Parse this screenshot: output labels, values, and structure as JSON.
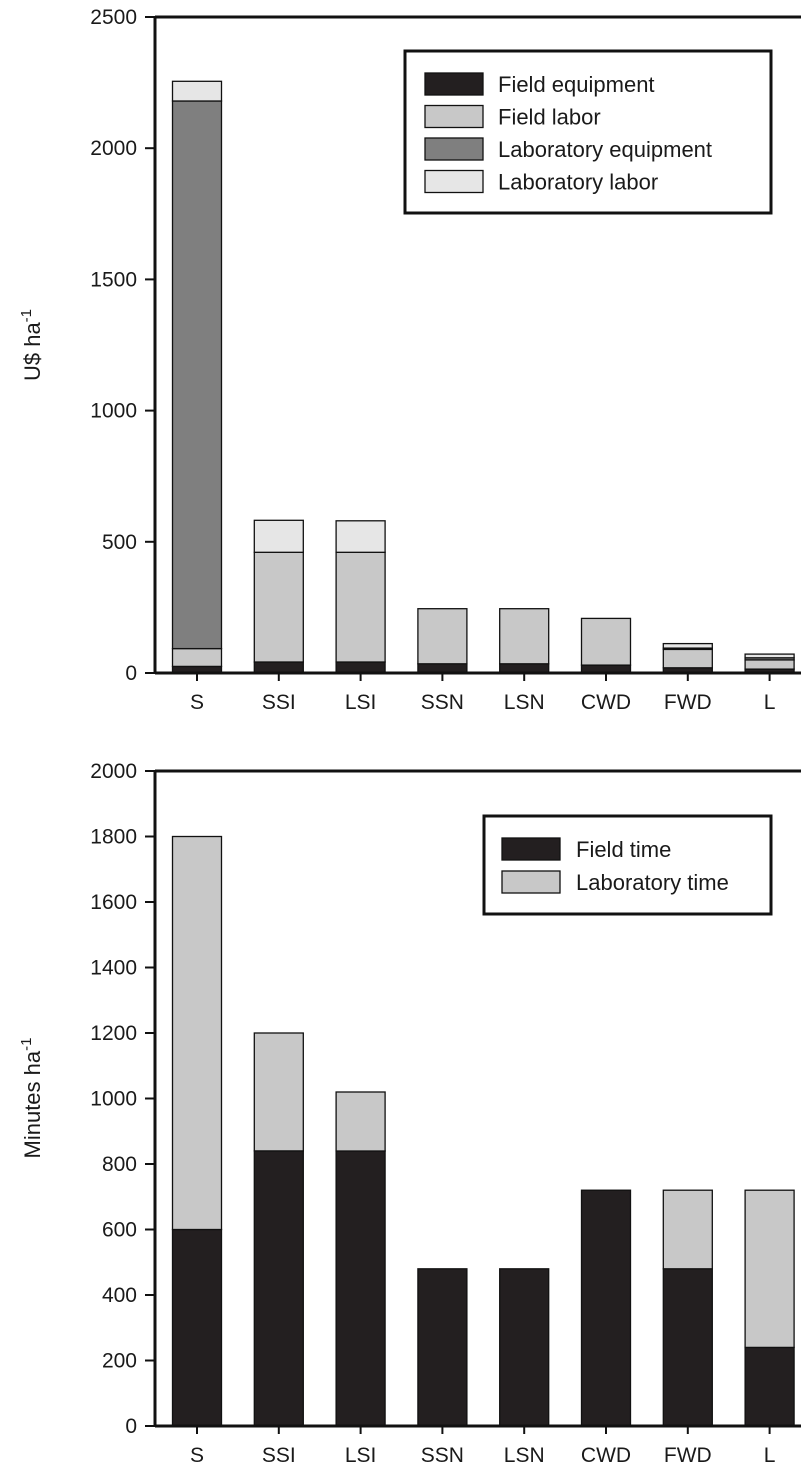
{
  "chart_data": [
    {
      "type": "bar",
      "stacked": true,
      "categories": [
        "S",
        "SSI",
        "LSI",
        "SSN",
        "LSN",
        "CWD",
        "FWD",
        "L"
      ],
      "ylabel": "U$ ha",
      "ylabel_superscript": "-1",
      "ylim": [
        0,
        2500
      ],
      "yticks": [
        0,
        500,
        1000,
        1500,
        2000,
        2500
      ],
      "grid": false,
      "legend_position": "top-right",
      "series": [
        {
          "name": "Field equipment",
          "color": "#231f20",
          "values": [
            25,
            42,
            42,
            35,
            35,
            30,
            20,
            15
          ]
        },
        {
          "name": "Field labor",
          "color": "#c8c8c8",
          "values": [
            68,
            418,
            418,
            210,
            210,
            178,
            70,
            35
          ]
        },
        {
          "name": "Laboratory equipment",
          "color": "#7f7f7f",
          "values": [
            2087,
            0,
            0,
            0,
            0,
            0,
            5,
            8
          ]
        },
        {
          "name": "Laboratory labor",
          "color": "#e6e6e6",
          "values": [
            75,
            122,
            120,
            0,
            0,
            0,
            17,
            14
          ]
        }
      ]
    },
    {
      "type": "bar",
      "stacked": true,
      "categories": [
        "S",
        "SSI",
        "LSI",
        "SSN",
        "LSN",
        "CWD",
        "FWD",
        "L"
      ],
      "ylabel": "Minutes ha",
      "ylabel_superscript": "-1",
      "ylim": [
        0,
        2000
      ],
      "yticks": [
        0,
        200,
        400,
        600,
        800,
        1000,
        1200,
        1400,
        1600,
        1800,
        2000
      ],
      "grid": false,
      "legend_position": "top-right",
      "series": [
        {
          "name": "Field time",
          "color": "#231f20",
          "values": [
            600,
            840,
            840,
            480,
            480,
            720,
            480,
            240
          ]
        },
        {
          "name": "Laboratory time",
          "color": "#c8c8c8",
          "values": [
            1200,
            360,
            180,
            0,
            0,
            0,
            240,
            480
          ]
        }
      ]
    }
  ]
}
